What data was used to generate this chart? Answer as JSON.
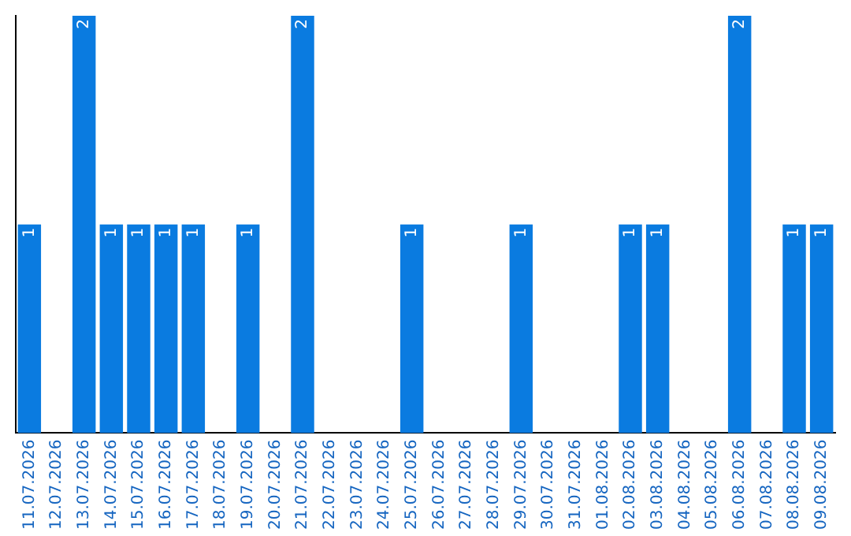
{
  "chart_data": {
    "type": "bar",
    "relative": false,
    "categories": [
      "11.07.2026",
      "12.07.2026",
      "13.07.2026",
      "14.07.2026",
      "15.07.2026",
      "16.07.2026",
      "17.07.2026",
      "18.07.2026",
      "19.07.2026",
      "20.07.2026",
      "21.07.2026",
      "22.07.2026",
      "23.07.2026",
      "24.07.2026",
      "25.07.2026",
      "26.07.2026",
      "27.07.2026",
      "28.07.2026",
      "29.07.2026",
      "30.07.2026",
      "31.07.2026",
      "01.08.2026",
      "02.08.2026",
      "03.08.2026",
      "04.08.2026",
      "05.08.2026",
      "06.08.2026",
      "07.08.2026",
      "08.08.2026",
      "09.08.2026"
    ],
    "values": [
      1,
      0,
      2,
      1,
      1,
      1,
      1,
      0,
      1,
      0,
      2,
      0,
      0,
      0,
      1,
      0,
      0,
      0,
      1,
      0,
      0,
      0,
      1,
      1,
      0,
      0,
      2,
      0,
      1,
      1
    ],
    "value_labels": [
      "1",
      null,
      "2",
      "1",
      "1",
      "1",
      "1",
      null,
      "1",
      null,
      "2",
      null,
      null,
      null,
      "1",
      null,
      null,
      null,
      "1",
      null,
      null,
      null,
      "1",
      "1",
      null,
      null,
      "2",
      null,
      "1",
      "1"
    ],
    "color": "#0a7be0",
    "grid": false,
    "legend": false,
    "tick_labels": "x"
  }
}
